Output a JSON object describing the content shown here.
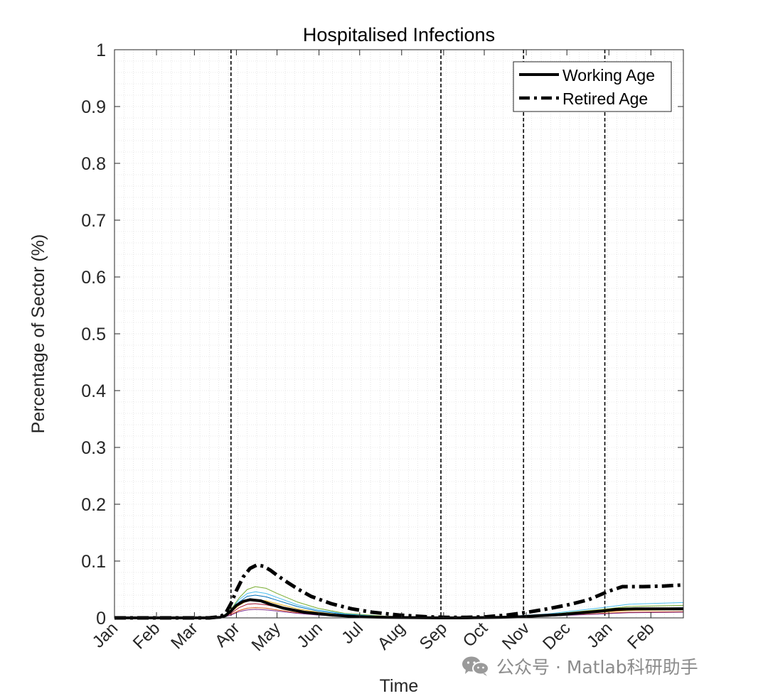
{
  "chart_data": {
    "type": "line",
    "title": "Hospitalised Infections",
    "xlabel": "Time",
    "ylabel": "Percentage of Sector (%)",
    "x_unit": "days since Jan 1",
    "xlim": [
      0,
      420
    ],
    "ylim": [
      0,
      1
    ],
    "yticks": [
      0,
      0.1,
      0.2,
      0.3,
      0.4,
      0.5,
      0.6,
      0.7,
      0.8,
      0.9,
      1
    ],
    "ytick_labels": [
      "0",
      "0.1",
      "0.2",
      "0.3",
      "0.4",
      "0.5",
      "0.6",
      "0.7",
      "0.8",
      "0.9",
      "1"
    ],
    "xticks": [
      0,
      31,
      59,
      90,
      120,
      151,
      181,
      212,
      243,
      273,
      304,
      334,
      365,
      396
    ],
    "xtick_labels": [
      "Jan",
      "Feb",
      "Mar",
      "Apr",
      "May",
      "Jun",
      "Jul",
      "Aug",
      "Sep",
      "Oct",
      "Nov",
      "Dec",
      "Jan",
      "Feb"
    ],
    "grid": "minor dotted",
    "vlines": [
      86,
      241,
      302,
      362
    ],
    "legend": {
      "location": "top-right",
      "entries": [
        {
          "label": "Working Age",
          "style": "solid"
        },
        {
          "label": "Retired Age",
          "style": "dash-dot"
        }
      ]
    },
    "series": [
      {
        "name": "Working Age",
        "style": "solid",
        "color": "#000000",
        "width": 4,
        "x": [
          0,
          70,
          78,
          82,
          86,
          90,
          95,
          100,
          108,
          115,
          125,
          140,
          160,
          180,
          200,
          220,
          240,
          255,
          270,
          285,
          300,
          315,
          330,
          345,
          360,
          370,
          385,
          400,
          420
        ],
        "y": [
          0,
          0,
          0.001,
          0.004,
          0.012,
          0.022,
          0.029,
          0.032,
          0.03,
          0.024,
          0.017,
          0.01,
          0.005,
          0.002,
          0.001,
          0.0005,
          0,
          0,
          0.0005,
          0.001,
          0.002,
          0.004,
          0.006,
          0.009,
          0.012,
          0.015,
          0.016,
          0.016,
          0.016
        ]
      },
      {
        "name": "Retired Age",
        "style": "dash-dot",
        "color": "#000000",
        "width": 5,
        "x": [
          0,
          70,
          78,
          82,
          86,
          90,
          95,
          100,
          105,
          110,
          115,
          120,
          128,
          136,
          145,
          160,
          175,
          190,
          210,
          230,
          245,
          260,
          275,
          290,
          305,
          320,
          335,
          350,
          358,
          365,
          375,
          390,
          405,
          420
        ],
        "y": [
          0,
          0,
          0.002,
          0.008,
          0.025,
          0.048,
          0.072,
          0.087,
          0.093,
          0.091,
          0.084,
          0.075,
          0.062,
          0.05,
          0.038,
          0.025,
          0.016,
          0.01,
          0.005,
          0.002,
          0.001,
          0.001,
          0.002,
          0.005,
          0.01,
          0.016,
          0.023,
          0.032,
          0.04,
          0.047,
          0.055,
          0.055,
          0.056,
          0.058
        ]
      },
      {
        "name": "sector-1",
        "style": "thin",
        "color": "#77ac30",
        "width": 1,
        "x": [
          0,
          70,
          80,
          86,
          92,
          98,
          104,
          112,
          120,
          135,
          150,
          170,
          200,
          240,
          280,
          320,
          360,
          380,
          420
        ],
        "y": [
          0,
          0,
          0.003,
          0.015,
          0.035,
          0.05,
          0.055,
          0.052,
          0.043,
          0.028,
          0.017,
          0.008,
          0.003,
          0,
          0.001,
          0.006,
          0.015,
          0.02,
          0.022
        ]
      },
      {
        "name": "sector-2",
        "style": "thin",
        "color": "#4dbeee",
        "width": 1,
        "x": [
          0,
          70,
          80,
          86,
          92,
          98,
          104,
          112,
          120,
          135,
          150,
          170,
          200,
          240,
          280,
          320,
          360,
          380,
          420
        ],
        "y": [
          0,
          0,
          0.003,
          0.014,
          0.032,
          0.043,
          0.046,
          0.043,
          0.036,
          0.023,
          0.014,
          0.007,
          0.002,
          0,
          0.001,
          0.007,
          0.018,
          0.024,
          0.027
        ]
      },
      {
        "name": "sector-3",
        "style": "thin",
        "color": "#0072bd",
        "width": 1,
        "x": [
          0,
          70,
          80,
          86,
          92,
          98,
          104,
          112,
          120,
          135,
          150,
          170,
          200,
          240,
          280,
          320,
          360,
          380,
          420
        ],
        "y": [
          0,
          0,
          0.002,
          0.012,
          0.028,
          0.038,
          0.04,
          0.037,
          0.031,
          0.02,
          0.012,
          0.006,
          0.002,
          0,
          0.001,
          0.005,
          0.012,
          0.016,
          0.018
        ]
      },
      {
        "name": "sector-4",
        "style": "thin",
        "color": "#edb120",
        "width": 1,
        "x": [
          0,
          70,
          80,
          86,
          92,
          98,
          104,
          112,
          120,
          135,
          150,
          170,
          200,
          240,
          280,
          320,
          360,
          380,
          420
        ],
        "y": [
          0,
          0,
          0.002,
          0.01,
          0.022,
          0.03,
          0.032,
          0.03,
          0.025,
          0.016,
          0.01,
          0.005,
          0.002,
          0,
          0.001,
          0.004,
          0.01,
          0.013,
          0.014
        ]
      },
      {
        "name": "sector-5",
        "style": "thin",
        "color": "#d95319",
        "width": 1,
        "x": [
          0,
          70,
          80,
          86,
          92,
          98,
          104,
          112,
          120,
          135,
          150,
          170,
          200,
          240,
          280,
          320,
          360,
          380,
          420
        ],
        "y": [
          0,
          0,
          0.001,
          0.006,
          0.013,
          0.017,
          0.018,
          0.017,
          0.014,
          0.009,
          0.006,
          0.003,
          0.001,
          0,
          0.001,
          0.003,
          0.008,
          0.01,
          0.011
        ]
      },
      {
        "name": "sector-6",
        "style": "thin",
        "color": "#7e2f8e",
        "width": 1,
        "x": [
          0,
          70,
          80,
          86,
          92,
          98,
          104,
          112,
          120,
          135,
          150,
          170,
          200,
          240,
          280,
          320,
          360,
          380,
          420
        ],
        "y": [
          0,
          0,
          0.001,
          0.005,
          0.011,
          0.014,
          0.015,
          0.014,
          0.012,
          0.008,
          0.005,
          0.003,
          0.001,
          0,
          0.001,
          0.003,
          0.007,
          0.009,
          0.01
        ]
      },
      {
        "name": "sector-7",
        "style": "thin",
        "color": "#a2142f",
        "width": 1,
        "x": [
          0,
          70,
          80,
          86,
          92,
          98,
          104,
          112,
          120,
          135,
          150,
          170,
          200,
          240,
          280,
          320,
          360,
          380,
          420
        ],
        "y": [
          0,
          0,
          0.002,
          0.008,
          0.018,
          0.024,
          0.025,
          0.023,
          0.019,
          0.012,
          0.008,
          0.004,
          0.001,
          0,
          0.001,
          0.004,
          0.011,
          0.014,
          0.015
        ]
      }
    ]
  },
  "watermark": {
    "text": "公众号 · Matlab科研助手",
    "icon": "wechat-icon"
  }
}
